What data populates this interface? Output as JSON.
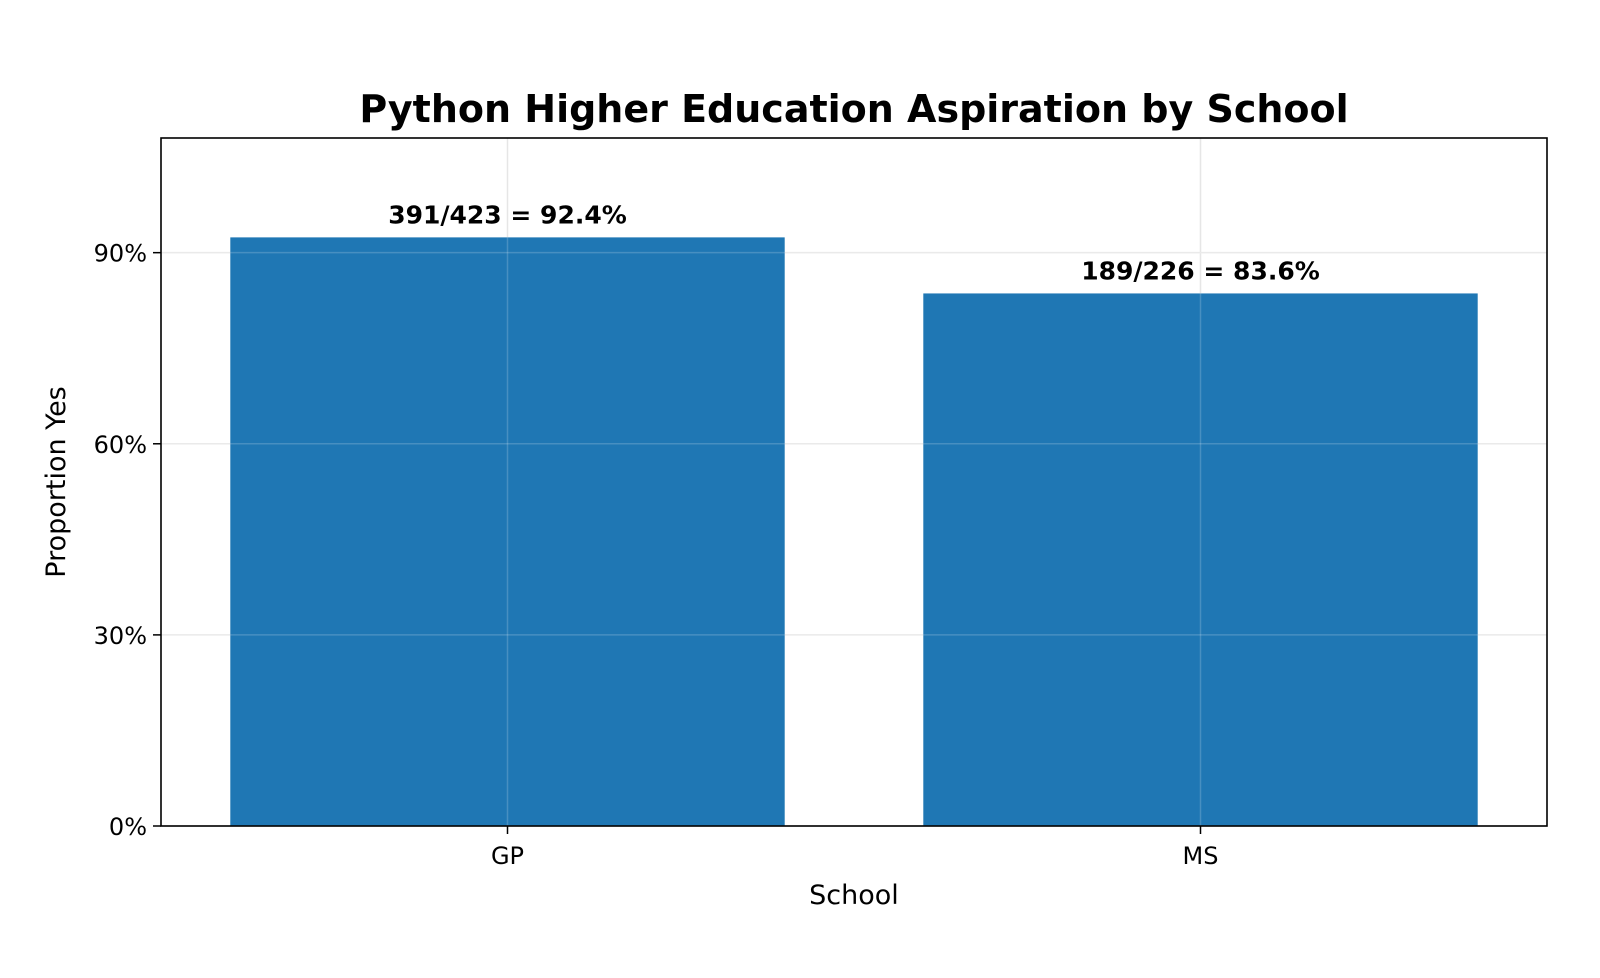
{
  "chart_data": {
    "type": "bar",
    "title": "Python Higher Education Aspiration by School",
    "xlabel": "School",
    "ylabel": "Proportion Yes",
    "categories": [
      "GP",
      "MS"
    ],
    "values": [
      0.924,
      0.836
    ],
    "data_labels": [
      "391/423 = 92.4%",
      "189/226 = 83.6%"
    ],
    "yticks": [
      0,
      0.3,
      0.6,
      0.9
    ],
    "ytick_labels": [
      "0%",
      "30%",
      "60%",
      "90%"
    ],
    "ylim": [
      0,
      1.08
    ],
    "grid": true,
    "bar_color": "#1f77b4"
  }
}
